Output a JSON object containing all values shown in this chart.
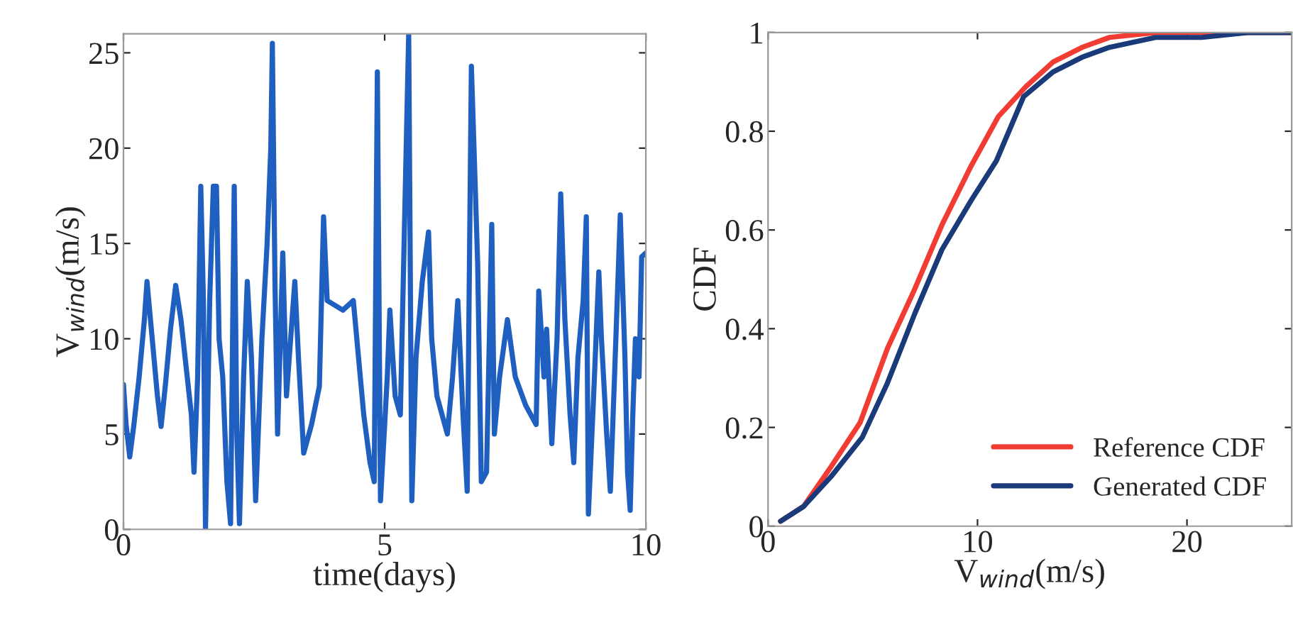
{
  "chart_data": [
    {
      "type": "line",
      "xlabel": "time(days)",
      "ylabel": "V$_{wind}$(m/s)",
      "xlim": [
        0,
        10
      ],
      "ylim": [
        0,
        26
      ],
      "xticks": [
        0,
        5,
        10
      ],
      "yticks": [
        0,
        5,
        10,
        15,
        20,
        25
      ],
      "grid": false,
      "legend": false,
      "series": [
        {
          "color": "#1f5fbf",
          "x": [
            0.0,
            0.05,
            0.12,
            0.2,
            0.3,
            0.4,
            0.45,
            0.55,
            0.65,
            0.72,
            0.8,
            0.9,
            1.0,
            1.1,
            1.2,
            1.3,
            1.35,
            1.42,
            1.48,
            1.53,
            1.57,
            1.65,
            1.72,
            1.78,
            1.83,
            1.9,
            1.98,
            2.05,
            2.12,
            2.17,
            2.22,
            2.3,
            2.37,
            2.45,
            2.53,
            2.65,
            2.75,
            2.82,
            2.85,
            2.9,
            2.95,
            3.05,
            3.12,
            3.2,
            3.28,
            3.35,
            3.45,
            3.6,
            3.75,
            3.83,
            3.9,
            4.2,
            4.4,
            4.5,
            4.6,
            4.72,
            4.8,
            4.86,
            4.92,
            5.05,
            5.1,
            5.2,
            5.3,
            5.46,
            5.52,
            5.6,
            5.72,
            5.84,
            5.9,
            6.0,
            6.1,
            6.2,
            6.3,
            6.4,
            6.5,
            6.58,
            6.66,
            6.78,
            6.85,
            6.95,
            7.05,
            7.1,
            7.2,
            7.35,
            7.5,
            7.7,
            7.9,
            7.95,
            8.05,
            8.1,
            8.2,
            8.3,
            8.37,
            8.45,
            8.55,
            8.62,
            8.7,
            8.8,
            8.86,
            8.9,
            9.0,
            9.1,
            9.15,
            9.25,
            9.32,
            9.4,
            9.51,
            9.6,
            9.65,
            9.7,
            9.75,
            9.8,
            9.87,
            9.92,
            10.0
          ],
          "values": [
            7.6,
            5.5,
            3.8,
            5.5,
            8,
            11,
            13,
            10,
            7,
            5.4,
            7.5,
            10.5,
            12.8,
            11,
            8.5,
            6,
            3,
            8,
            18,
            12,
            0,
            12,
            18,
            18,
            10,
            8,
            2.5,
            0.3,
            18,
            5,
            0.3,
            8,
            13,
            9,
            1.5,
            10,
            15,
            20,
            25.5,
            13,
            5,
            14.5,
            7,
            10,
            13,
            9,
            4,
            5.5,
            7.5,
            16.4,
            12,
            11.5,
            12,
            9,
            6,
            3.5,
            2.5,
            24,
            1.5,
            8,
            11.5,
            7,
            6,
            26,
            1.5,
            9,
            13,
            15.6,
            10,
            7,
            6,
            5,
            8,
            12,
            6,
            2,
            24.3,
            14,
            2.5,
            3,
            16,
            5,
            8,
            11,
            8,
            6.5,
            5.5,
            12.5,
            8,
            10.5,
            4.5,
            10,
            17.6,
            11,
            6,
            3.5,
            9,
            12,
            16.4,
            0.8,
            7,
            13.5,
            10,
            5,
            2,
            8,
            16.5,
            9,
            3,
            1,
            6,
            10,
            8,
            14.3,
            14.5
          ]
        }
      ]
    },
    {
      "type": "line",
      "xlabel": "V$_{wind}$(m/s)",
      "ylabel": "CDF",
      "xlim": [
        0,
        25
      ],
      "ylim": [
        0,
        1
      ],
      "xticks": [
        0,
        10,
        20
      ],
      "yticks": [
        0,
        0.2,
        0.4,
        0.6,
        0.8,
        1
      ],
      "grid": false,
      "legend": "bottom right",
      "series": [
        {
          "name": "Reference CDF",
          "color": "#f03c32",
          "x": [
            0.6,
            1.7,
            3.0,
            4.4,
            5.7,
            7.0,
            8.3,
            9.7,
            11.0,
            12.3,
            13.6,
            15.0,
            16.3,
            18.5,
            25
          ],
          "values": [
            0.01,
            0.04,
            0.12,
            0.21,
            0.36,
            0.48,
            0.61,
            0.73,
            0.83,
            0.89,
            0.94,
            0.97,
            0.99,
            1.0,
            1.0
          ]
        },
        {
          "name": "Generated CDF",
          "color": "#1a3a7a",
          "x": [
            0.6,
            1.7,
            3.0,
            4.5,
            5.7,
            7.0,
            8.3,
            9.7,
            10.9,
            12.2,
            13.6,
            15.0,
            16.3,
            18.5,
            20.7,
            22.9,
            25
          ],
          "values": [
            0.01,
            0.04,
            0.1,
            0.18,
            0.29,
            0.43,
            0.56,
            0.66,
            0.74,
            0.87,
            0.92,
            0.95,
            0.97,
            0.99,
            0.99,
            1.0,
            1.0
          ]
        }
      ]
    }
  ]
}
